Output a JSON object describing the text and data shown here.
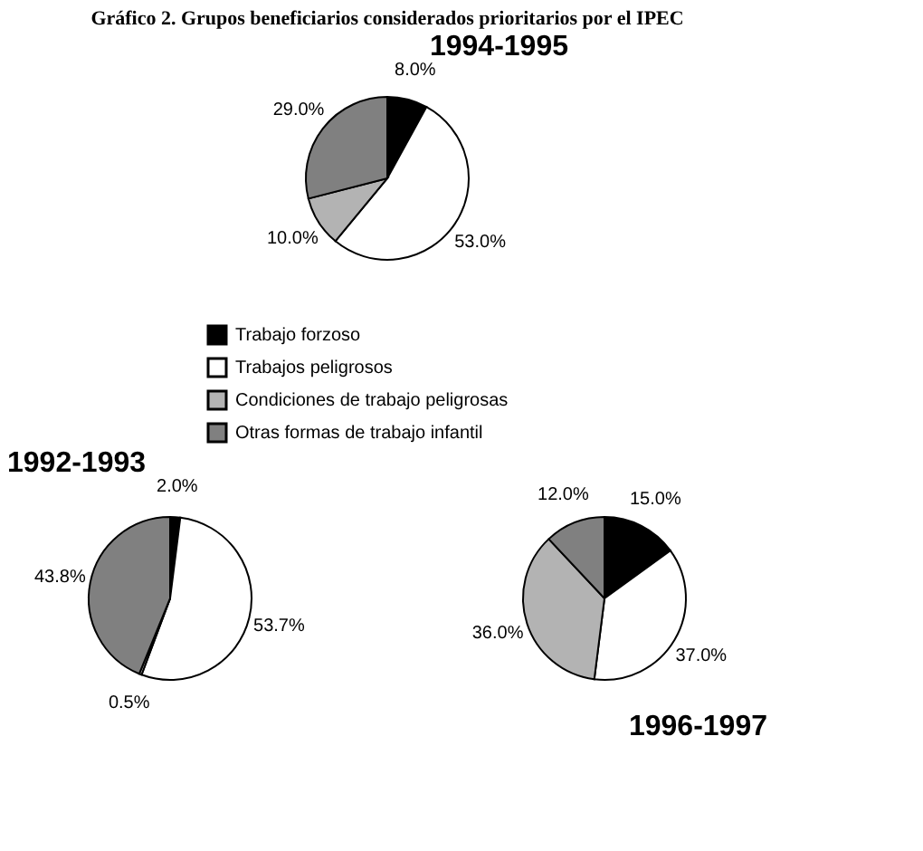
{
  "chart_data": [
    {
      "type": "pie",
      "title": "Gráfico 2. Grupos beneficiarios considerados prioritarios por el IPEC",
      "subtitle": "1994-1995",
      "categories": [
        "Trabajo forzoso",
        "Trabajos peligrosos",
        "Condiciones de trabajo peligrosas",
        "Otras formas de trabajo infantil"
      ],
      "values": [
        8.0,
        53.0,
        10.0,
        29.0
      ],
      "colors": [
        "#000000",
        "#ffffff",
        "#b3b3b3",
        "#808080"
      ],
      "value_labels": [
        "8.0%",
        "53.0%",
        "10.0%",
        "29.0%"
      ],
      "legend": "bottom"
    },
    {
      "type": "pie",
      "subtitle": "1992-1993",
      "categories": [
        null,
        null,
        null,
        null
      ],
      "values": [
        2.0,
        53.7,
        0.5,
        43.8
      ],
      "colors": [
        "#000000",
        "#ffffff",
        "#b3b3b3",
        "#808080"
      ],
      "value_labels": [
        "2.0%",
        "53.7%",
        "0.5%",
        "43.8%"
      ]
    },
    {
      "type": "pie",
      "subtitle": "1996-1997",
      "categories": [
        null,
        null,
        null,
        null
      ],
      "values": [
        15.0,
        37.0,
        36.0,
        12.0
      ],
      "colors": [
        "#000000",
        "#ffffff",
        "#b3b3b3",
        "#808080"
      ],
      "value_labels": [
        "15.0%",
        "37.0%",
        "36.0%",
        "12.0%"
      ]
    }
  ]
}
